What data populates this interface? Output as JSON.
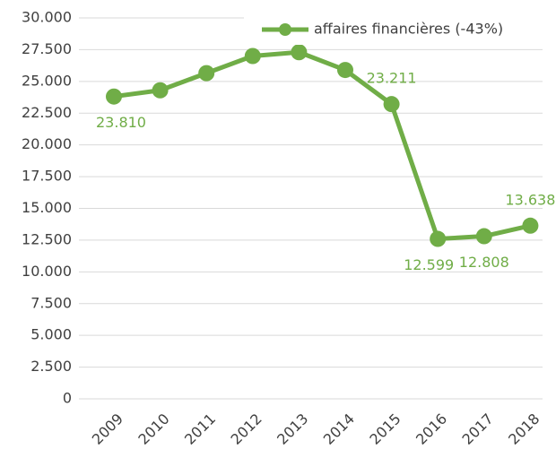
{
  "chart_data": {
    "type": "line",
    "categories": [
      "2009",
      "2010",
      "2011",
      "2012",
      "2013",
      "2014",
      "2015",
      "2016",
      "2017",
      "2018"
    ],
    "series": [
      {
        "name": "affaires financières (-43%)",
        "color": "#70ad47",
        "values": [
          23810,
          24300,
          25650,
          27000,
          27300,
          25900,
          23211,
          12599,
          12808,
          13638
        ],
        "value_labels": [
          "23.810",
          null,
          null,
          null,
          null,
          null,
          "23.211",
          "12.599",
          "12.808",
          "13.638"
        ]
      }
    ],
    "ylim": [
      0,
      30000
    ],
    "yticks": [
      0,
      {
        "value": 2500,
        "label": "2.500"
      },
      {
        "value": 5000,
        "label": "5.000"
      },
      {
        "value": 7500,
        "label": "7.500"
      },
      {
        "value": 10000,
        "label": "10.000"
      },
      {
        "value": 12500,
        "label": "12.500"
      },
      {
        "value": 15000,
        "label": "15.000"
      },
      {
        "value": 17500,
        "label": "17.500"
      },
      {
        "value": 20000,
        "label": "20.000"
      },
      {
        "value": 22500,
        "label": "22.500"
      },
      {
        "value": 25000,
        "label": "25.000"
      },
      {
        "value": 27500,
        "label": "27.500"
      },
      {
        "value": 30000,
        "label": "30.000"
      }
    ],
    "grid": true,
    "legend": "top"
  }
}
